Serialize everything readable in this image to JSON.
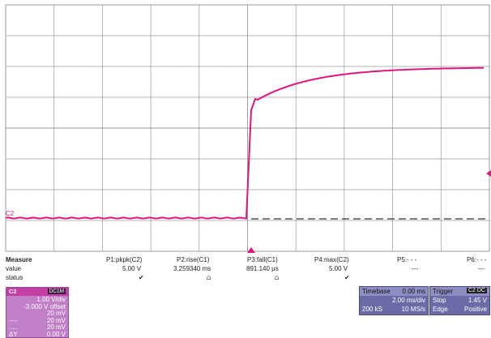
{
  "scope": {
    "channel_marker": "C2",
    "grid": {
      "h_divs": 10,
      "v_divs": 8
    },
    "colors": {
      "trace": "#e0157f",
      "grid": "#9a9a9a",
      "ref": "#333333"
    },
    "icons": [
      "trigger-position-icon",
      "trigger-level-icon"
    ]
  },
  "measure": {
    "title": "Measure",
    "value_label": "value",
    "status_label": "status",
    "columns": [
      {
        "name": "P1:pkpk(C2)",
        "value": "5.00 V",
        "status": "✔"
      },
      {
        "name": "P2:rise(C1)",
        "value": "3.259340 ms",
        "status": "⩍"
      },
      {
        "name": "P3:fall(C1)",
        "value": "891.140 µs",
        "status": "⩍"
      },
      {
        "name": "P4:max(C2)",
        "value": "5.00 V",
        "status": "✔"
      },
      {
        "name": "P5:- - -",
        "value": "---",
        "status": ""
      },
      {
        "name": "P6:- - -",
        "value": "---",
        "status": ""
      }
    ]
  },
  "channel": {
    "name": "C2",
    "coupling": "DC1M",
    "scale": "1.00 V/div",
    "offset": "-3.000 V offset",
    "zoom_rows": [
      {
        "label": "----",
        "value": "20 mV"
      },
      {
        "label": ".....",
        "value": "20 mV"
      },
      {
        "label": "ΔY",
        "value": "0.00 V"
      }
    ]
  },
  "timebase": {
    "title": "Timebase",
    "delay": "0.00 ms",
    "scale": "2.00 ms/div",
    "samples": "200 kS",
    "rate": "10 MS/s"
  },
  "trigger": {
    "title": "Trigger",
    "badge": "C2 DC",
    "mode": "Stop",
    "level": "1.45 V",
    "type": "Edge",
    "slope": "Positive"
  }
}
